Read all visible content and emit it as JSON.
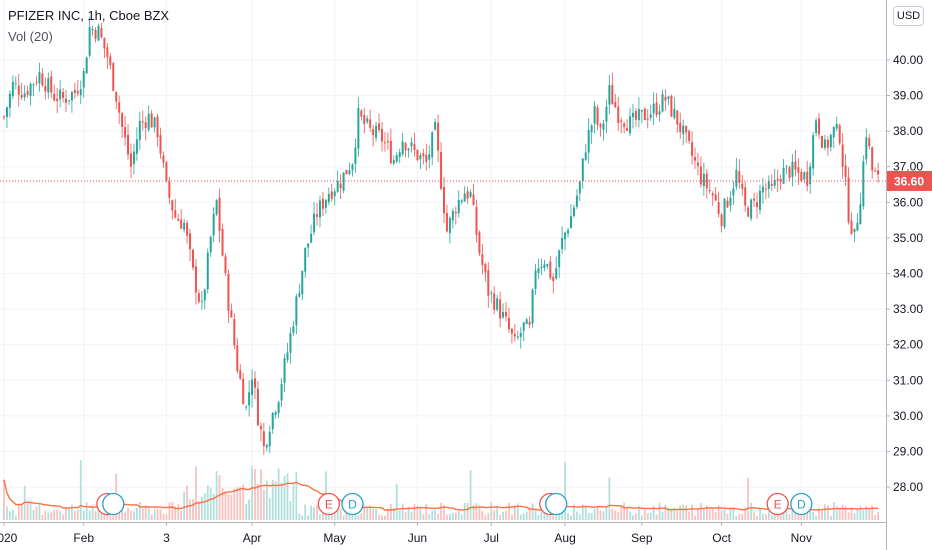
{
  "legend": {
    "title": "PFIZER INC, 1h, Cboe BZX",
    "volume": "Vol (20)"
  },
  "currency_label": "USD",
  "colors": {
    "up": "#26a69a",
    "down": "#ef5350",
    "volume_up": "#b2dfdb",
    "volume_down": "#f7c1c0",
    "volume_ma": "#ff7043",
    "last_price": "#ef5350",
    "earnings": "#ef5350",
    "dividend": "#26a0c8"
  },
  "chart_data": {
    "type": "candlestick",
    "title": "PFIZER INC, 1h, Cboe BZX",
    "currency": "USD",
    "timeframe": "1h",
    "ylim": [
      27.4,
      41.2
    ],
    "y_ticks": [
      "28.00",
      "29.00",
      "30.00",
      "31.00",
      "32.00",
      "33.00",
      "34.00",
      "35.00",
      "36.00",
      "37.00",
      "38.00",
      "39.00",
      "40.00"
    ],
    "x_ticks": [
      "2020",
      "Feb",
      "3",
      "Apr",
      "May",
      "Jun",
      "Jul",
      "Aug",
      "Sep",
      "Oct",
      "Nov"
    ],
    "last_price": 36.6,
    "last_price_label": "36.60",
    "price_path": [
      [
        0,
        38.4
      ],
      [
        3,
        39.3
      ],
      [
        7,
        39.1
      ],
      [
        12,
        39.6
      ],
      [
        17,
        39.0
      ],
      [
        20,
        38.9
      ],
      [
        24,
        39.1
      ],
      [
        27,
        39.6
      ],
      [
        29,
        40.9
      ],
      [
        32,
        40.8
      ],
      [
        35,
        40.1
      ],
      [
        38,
        39.0
      ],
      [
        40,
        38.1
      ],
      [
        43,
        37.0
      ],
      [
        46,
        38.2
      ],
      [
        49,
        38.4
      ],
      [
        52,
        38.0
      ],
      [
        55,
        36.4
      ],
      [
        58,
        35.6
      ],
      [
        61,
        35.4
      ],
      [
        64,
        34.0
      ],
      [
        67,
        33.0
      ],
      [
        70,
        35.0
      ],
      [
        72,
        36.0
      ],
      [
        75,
        33.8
      ],
      [
        79,
        31.4
      ],
      [
        82,
        30.2
      ],
      [
        84,
        31.2
      ],
      [
        86,
        30.0
      ],
      [
        88,
        29.1
      ],
      [
        90,
        29.8
      ],
      [
        93,
        30.6
      ],
      [
        96,
        31.8
      ],
      [
        99,
        33.2
      ],
      [
        102,
        34.6
      ],
      [
        106,
        35.7
      ],
      [
        110,
        36.3
      ],
      [
        114,
        36.6
      ],
      [
        118,
        37.2
      ],
      [
        120,
        38.4
      ],
      [
        124,
        38.0
      ],
      [
        128,
        37.8
      ],
      [
        132,
        37.2
      ],
      [
        135,
        37.8
      ],
      [
        139,
        37.4
      ],
      [
        143,
        37.1
      ],
      [
        146,
        38.0
      ],
      [
        150,
        35.2
      ],
      [
        153,
        35.9
      ],
      [
        156,
        36.3
      ],
      [
        158,
        36.2
      ],
      [
        161,
        34.6
      ],
      [
        164,
        33.5
      ],
      [
        167,
        33.1
      ],
      [
        170,
        32.6
      ],
      [
        173,
        32.0
      ],
      [
        176,
        32.5
      ],
      [
        178,
        32.4
      ],
      [
        180,
        34.2
      ],
      [
        183,
        34.4
      ],
      [
        186,
        33.8
      ],
      [
        189,
        34.9
      ],
      [
        192,
        35.6
      ],
      [
        195,
        36.5
      ],
      [
        197,
        37.6
      ],
      [
        200,
        38.5
      ],
      [
        202,
        37.9
      ],
      [
        205,
        39.1
      ],
      [
        208,
        38.5
      ],
      [
        212,
        38.2
      ],
      [
        216,
        38.4
      ],
      [
        220,
        38.6
      ],
      [
        224,
        38.9
      ],
      [
        228,
        38.3
      ],
      [
        232,
        37.5
      ],
      [
        236,
        36.7
      ],
      [
        240,
        36.2
      ],
      [
        243,
        35.6
      ],
      [
        246,
        36.3
      ],
      [
        248,
        36.8
      ],
      [
        251,
        35.8
      ],
      [
        254,
        35.9
      ],
      [
        257,
        36.4
      ],
      [
        260,
        36.3
      ],
      [
        263,
        36.8
      ],
      [
        266,
        36.9
      ],
      [
        269,
        36.8
      ],
      [
        272,
        36.7
      ],
      [
        275,
        38.4
      ],
      [
        278,
        37.5
      ],
      [
        281,
        38.0
      ],
      [
        283,
        37.9
      ],
      [
        286,
        35.7
      ],
      [
        288,
        35.0
      ],
      [
        290,
        36.2
      ],
      [
        292,
        38.0
      ],
      [
        294,
        36.9
      ],
      [
        296,
        36.6
      ]
    ],
    "x_tick_positions": [
      0,
      27,
      55,
      84,
      112,
      140,
      165,
      190,
      216,
      243,
      270
    ],
    "events": [
      {
        "type": "earnings",
        "label": "E",
        "x": 35
      },
      {
        "type": "dividend",
        "label": "",
        "x": 37
      },
      {
        "type": "earnings",
        "label": "E",
        "x": 110
      },
      {
        "type": "dividend",
        "label": "D",
        "x": 118
      },
      {
        "type": "earnings",
        "label": "E",
        "x": 185
      },
      {
        "type": "dividend",
        "label": "",
        "x": 187
      },
      {
        "type": "earnings",
        "label": "E",
        "x": 262
      },
      {
        "type": "dividend",
        "label": "D",
        "x": 270
      }
    ]
  }
}
